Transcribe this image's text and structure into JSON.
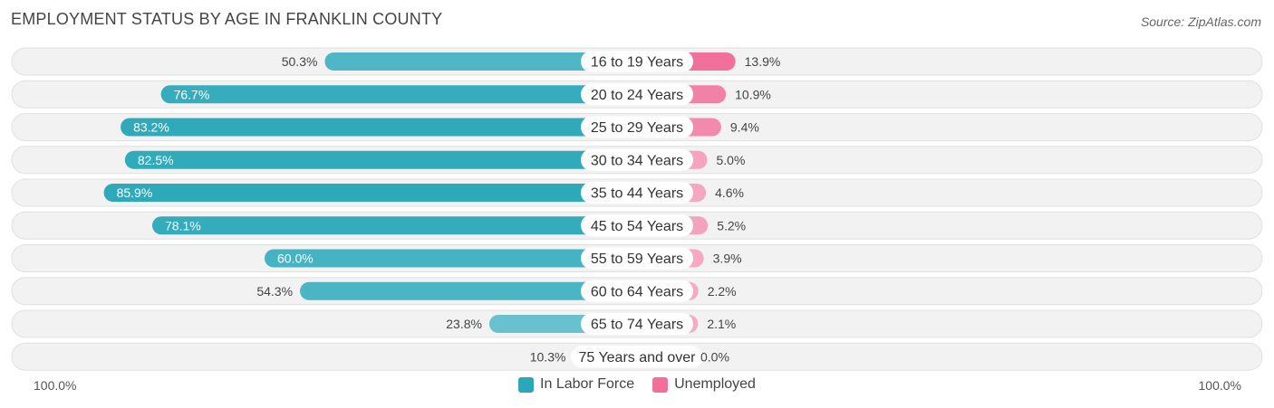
{
  "title": "EMPLOYMENT STATUS BY AGE IN FRANKLIN COUNTY",
  "source": "Source: ZipAtlas.com",
  "axis": {
    "left_label": "100.0%",
    "right_label": "100.0%"
  },
  "legend": [
    {
      "label": "In Labor Force",
      "color": "#2aa7b8"
    },
    {
      "label": "Unemployed",
      "color": "#f06f9b"
    }
  ],
  "chart_data": {
    "type": "bar",
    "orientation": "diverging-horizontal",
    "title": "EMPLOYMENT STATUS BY AGE IN FRANKLIN COUNTY",
    "categories": [
      "16 to 19 Years",
      "20 to 24 Years",
      "25 to 29 Years",
      "30 to 34 Years",
      "35 to 44 Years",
      "45 to 54 Years",
      "55 to 59 Years",
      "60 to 64 Years",
      "65 to 74 Years",
      "75 Years and over"
    ],
    "series": [
      {
        "name": "In Labor Force",
        "side": "left",
        "values": [
          50.3,
          76.7,
          83.2,
          82.5,
          85.9,
          78.1,
          60.0,
          54.3,
          23.8,
          10.3
        ],
        "labels": [
          "50.3%",
          "76.7%",
          "83.2%",
          "82.5%",
          "85.9%",
          "78.1%",
          "60.0%",
          "54.3%",
          "23.8%",
          "10.3%"
        ]
      },
      {
        "name": "Unemployed",
        "side": "right",
        "values": [
          13.9,
          10.9,
          9.4,
          5.0,
          4.6,
          5.2,
          3.9,
          2.2,
          2.1,
          0.0
        ],
        "labels": [
          "13.9%",
          "10.9%",
          "9.4%",
          "5.0%",
          "4.6%",
          "5.2%",
          "3.9%",
          "2.2%",
          "2.1%",
          "0.0%"
        ]
      }
    ],
    "xlim": [
      0,
      100
    ],
    "legend_position": "bottom-center"
  }
}
